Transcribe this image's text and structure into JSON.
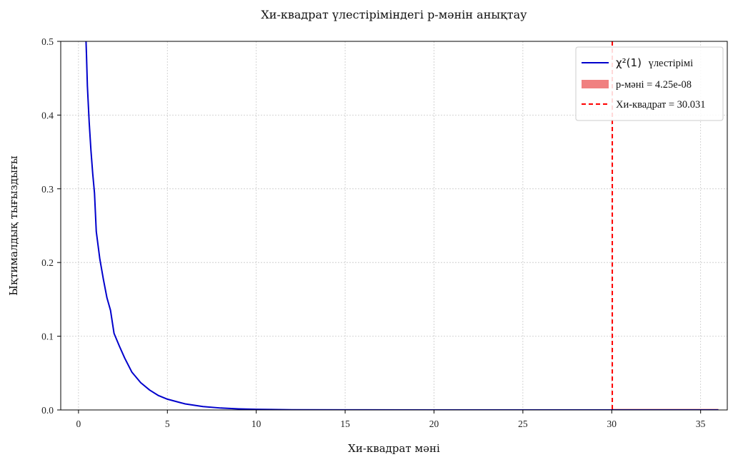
{
  "chart_data": {
    "type": "line",
    "title": "Хи-квадрат үлестіріміндегі р-мәнін анықтау",
    "xlabel": "Хи-квадрат мәні",
    "ylabel": "Ықтималдық тығыздығы",
    "xlim": [
      -1,
      36.5
    ],
    "ylim": [
      0,
      0.5
    ],
    "x_ticks": [
      0,
      5,
      10,
      15,
      20,
      25,
      30,
      35
    ],
    "y_ticks": [
      0.0,
      0.1,
      0.2,
      0.3,
      0.4,
      0.5
    ],
    "x_tick_labels": [
      "0",
      "5",
      "10",
      "15",
      "20",
      "25",
      "30",
      "35"
    ],
    "y_tick_labels": [
      "0.0",
      "0.1",
      "0.2",
      "0.3",
      "0.4",
      "0.5"
    ],
    "grid": true,
    "legend_position": "top-right",
    "series": [
      {
        "name": "χ²(1) үлестірімі",
        "name_math": "χ²(1)",
        "name_suffix": "үлестірімі",
        "kind": "line",
        "color": "#0000cc",
        "x": [
          0.35,
          0.4,
          0.45,
          0.5,
          0.6,
          0.7,
          0.8,
          0.9,
          1.0,
          1.2,
          1.4,
          1.6,
          1.8,
          2.0,
          2.3,
          2.6,
          3.0,
          3.5,
          4.0,
          4.5,
          5.0,
          6.0,
          7.0,
          8.0,
          9.0,
          10.0,
          12.0,
          15.0,
          20.0,
          25.0,
          30.0,
          36.0
        ],
        "y": [
          0.5594,
          0.5164,
          0.4808,
          0.4394,
          0.3907,
          0.3521,
          0.3206,
          0.2942,
          0.242,
          0.2047,
          0.1772,
          0.1522,
          0.1352,
          0.1038,
          0.0866,
          0.0703,
          0.0514,
          0.037,
          0.027,
          0.0195,
          0.0146,
          0.0082,
          0.0046,
          0.0026,
          0.0015,
          0.0009,
          0.0003,
          0.0001,
          0.0,
          0.0,
          0.0,
          0.0
        ]
      },
      {
        "name": "р-мәні = 4.25e-08",
        "kind": "area",
        "color": "#f08080",
        "x_from": 30.031,
        "x_to": 36.0
      },
      {
        "name": "Хи-квадрат = 30.031",
        "kind": "vline",
        "color": "#ff0000",
        "x": 30.031
      }
    ]
  }
}
